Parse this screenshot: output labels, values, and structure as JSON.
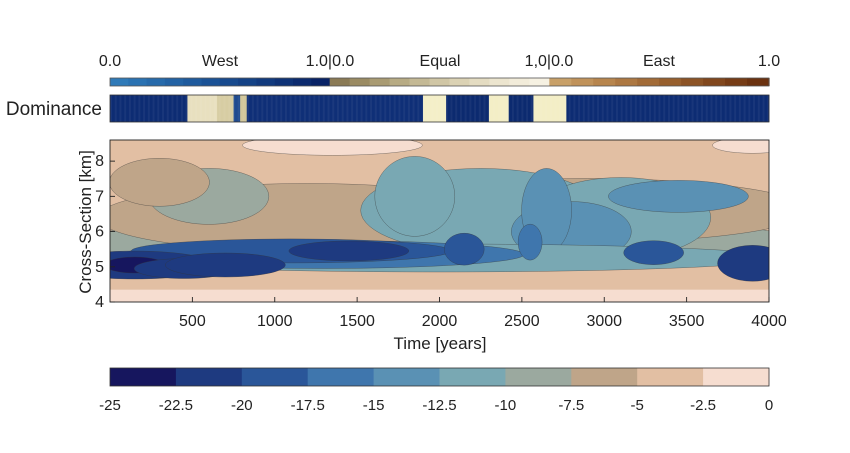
{
  "dominance_scale": {
    "labels": [
      "0.0",
      "West",
      "1.0|0.0",
      "Equal",
      "1,0|0.0",
      "East",
      "1.0"
    ],
    "west_colors": [
      "#2f7ab8",
      "#2a72b2",
      "#266aab",
      "#2262a4",
      "#1e5a9d",
      "#1a5296",
      "#174a8e",
      "#144286",
      "#113a7e",
      "#0e3276",
      "#0b2a6e",
      "#082266"
    ],
    "equal_colors": [
      "#8a7a55",
      "#9a8b63",
      "#a99b73",
      "#b7ab84",
      "#c4b995",
      "#d0c6a5",
      "#dbd2b4",
      "#e4dcc2",
      "#ece5cf",
      "#f2ecda",
      "#f6f1e2"
    ],
    "east_colors": [
      "#c8a068",
      "#c0925a",
      "#b7854d",
      "#ad7842",
      "#a26b37",
      "#975f2d",
      "#8c5325",
      "#81471d",
      "#763c16",
      "#6b3210"
    ],
    "dominance_label": "Dominance",
    "dominance_segments": [
      {
        "t0": 0,
        "t1": 470,
        "color": "#0d2c73"
      },
      {
        "t0": 470,
        "t1": 650,
        "color": "#e8e0bf"
      },
      {
        "t0": 650,
        "t1": 750,
        "color": "#d7cda3"
      },
      {
        "t0": 750,
        "t1": 790,
        "color": "#1e4a8f"
      },
      {
        "t0": 790,
        "t1": 830,
        "color": "#d2c79a"
      },
      {
        "t0": 830,
        "t1": 1900,
        "color": "#0f2f77"
      },
      {
        "t0": 1900,
        "t1": 2040,
        "color": "#f4efc8"
      },
      {
        "t0": 2040,
        "t1": 2300,
        "color": "#0c2a6f"
      },
      {
        "t0": 2300,
        "t1": 2420,
        "color": "#f3eec6"
      },
      {
        "t0": 2420,
        "t1": 2570,
        "color": "#0c2a6f"
      },
      {
        "t0": 2570,
        "t1": 2770,
        "color": "#f3eec6"
      },
      {
        "t0": 2770,
        "t1": 4000,
        "color": "#0d2c73"
      }
    ]
  },
  "chart_data": {
    "type": "heatmap",
    "title": "",
    "xlabel": "Time [years]",
    "ylabel": "Cross-Section [km]",
    "xlim": [
      0,
      4000
    ],
    "ylim": [
      4,
      8.6
    ],
    "xticks": [
      "500",
      "1000",
      "1500",
      "2000",
      "2500",
      "3000",
      "3500",
      "4000"
    ],
    "xtick_values": [
      500,
      1000,
      1500,
      2000,
      2500,
      3000,
      3500,
      4000
    ],
    "yticks": [
      "4",
      "5",
      "6",
      "7",
      "8"
    ],
    "ytick_values": [
      4,
      5,
      6,
      7,
      8
    ],
    "colorbar": {
      "ticks": [
        "-25",
        "-22.5",
        "-20",
        "-17.5",
        "-15",
        "-12.5",
        "-10",
        "-7.5",
        "-5",
        "-2.5",
        "0"
      ],
      "tick_values": [
        -25,
        -22.5,
        -20,
        -17.5,
        -15,
        -12.5,
        -10,
        -7.5,
        -5,
        -2.5,
        0
      ],
      "colors": [
        "#16165e",
        "#1e3a80",
        "#2a5699",
        "#3f76ad",
        "#5a91b4",
        "#79a8b3",
        "#9ba99f",
        "#bfa589",
        "#e2bfa3",
        "#f6ddd0"
      ]
    }
  }
}
